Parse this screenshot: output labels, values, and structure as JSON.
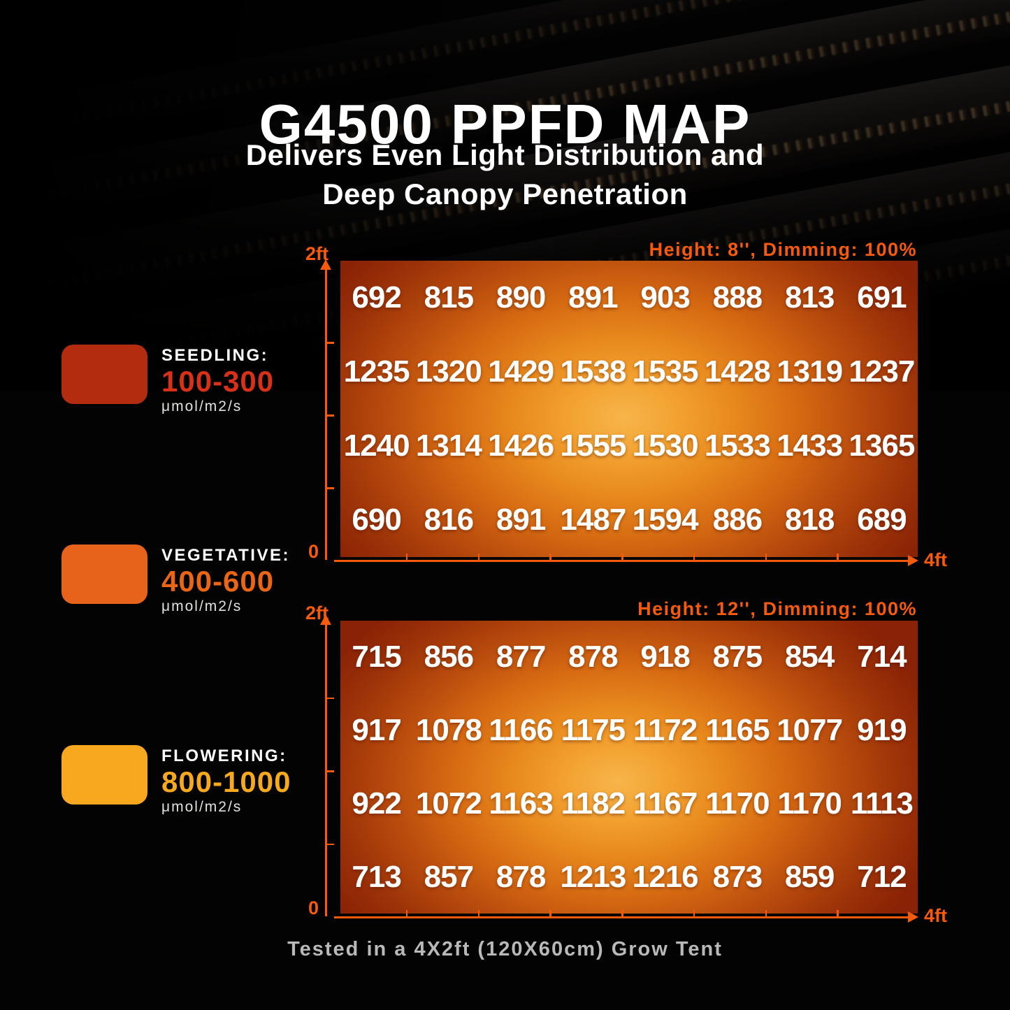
{
  "page": {
    "title": "G4500 PPFD MAP",
    "subtitle_line1": "Delivers Even Light Distribution and",
    "subtitle_line2": "Deep Canopy Penetration",
    "footer": "Tested in a 4X2ft (120X60cm) Grow Tent"
  },
  "legend": {
    "items": [
      {
        "label": "SEEDLING:",
        "range": "100-300",
        "unit": "μmol/m2/s",
        "swatch_color": "#b42c10",
        "range_color": "#d93018"
      },
      {
        "label": "VEGETATIVE:",
        "range": "400-600",
        "unit": "μmol/m2/s",
        "swatch_color": "#e7621a",
        "range_color": "#ea6514"
      },
      {
        "label": "FLOWERING:",
        "range": "800-1000",
        "unit": "μmol/m2/s",
        "swatch_color": "#f8a81f",
        "range_color": "#f6a81e"
      }
    ]
  },
  "colors": {
    "accent_orange": "#f85a0c",
    "heatmap_center": "#f5ac3c",
    "heatmap_edge": "#8a2206",
    "value_text": "#ffffff",
    "footer_text": "#b9b9b9",
    "background": "#030303"
  },
  "chart_data": [
    {
      "type": "heatmap",
      "title": "Height: 8'', Dimming: 100%",
      "unit": "μmol/m2/s",
      "x_axis": {
        "origin_label": "0",
        "end_label": "4ft",
        "segments": 8
      },
      "y_axis": {
        "end_label": "2ft",
        "segments": 4
      },
      "values": [
        [
          692,
          815,
          890,
          891,
          903,
          888,
          813,
          691
        ],
        [
          1235,
          1320,
          1429,
          1538,
          1535,
          1428,
          1319,
          1237
        ],
        [
          1240,
          1314,
          1426,
          1555,
          1530,
          1533,
          1433,
          1365
        ],
        [
          690,
          816,
          891,
          1487,
          1594,
          886,
          818,
          689
        ]
      ]
    },
    {
      "type": "heatmap",
      "title": "Height: 12'', Dimming: 100%",
      "unit": "μmol/m2/s",
      "x_axis": {
        "origin_label": "0",
        "end_label": "4ft",
        "segments": 8
      },
      "y_axis": {
        "end_label": "2ft",
        "segments": 4
      },
      "values": [
        [
          715,
          856,
          877,
          878,
          918,
          875,
          854,
          714
        ],
        [
          917,
          1078,
          1166,
          1175,
          1172,
          1165,
          1077,
          919
        ],
        [
          922,
          1072,
          1163,
          1182,
          1167,
          1170,
          1170,
          1113
        ],
        [
          713,
          857,
          878,
          1213,
          1216,
          873,
          859,
          712
        ]
      ]
    }
  ]
}
